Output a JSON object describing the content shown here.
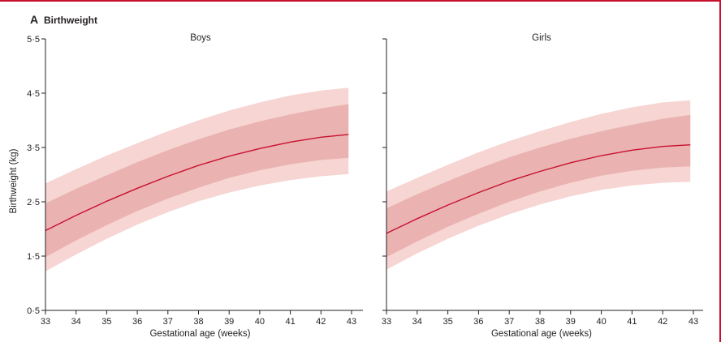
{
  "figure": {
    "panel_letter": "A",
    "panel_title": "Birthweight"
  },
  "colors": {
    "outer_band": "#f6d5d3",
    "inner_band": "#eab3b1",
    "median": "#c8102e",
    "axis": "#231f20",
    "frame": "#c8102e"
  },
  "chart_data": [
    {
      "type": "area",
      "title": "Boys",
      "xlabel": "Gestational age (weeks)",
      "ylabel": "Birthweight (kg)",
      "xlim": [
        33,
        43
      ],
      "ylim": [
        0.5,
        5.5
      ],
      "x_ticks": [
        "33",
        "34",
        "35",
        "36",
        "37",
        "38",
        "39",
        "40",
        "41",
        "42",
        "43"
      ],
      "y_ticks": [
        "0·5",
        "1·5",
        "2·5",
        "3·5",
        "4·5",
        "5·5"
      ],
      "y_tick_values": [
        0.5,
        1.5,
        2.5,
        3.5,
        4.5,
        5.5
      ],
      "grid": false,
      "x": [
        33,
        34,
        35,
        36,
        37,
        38,
        39,
        40,
        41,
        42,
        42.9
      ],
      "series": [
        {
          "values": [
            1.22,
            1.53,
            1.82,
            2.08,
            2.31,
            2.51,
            2.67,
            2.8,
            2.9,
            2.97,
            3.01
          ]
        },
        {
          "values": [
            1.48,
            1.79,
            2.07,
            2.33,
            2.56,
            2.76,
            2.94,
            3.08,
            3.19,
            3.27,
            3.31
          ]
        },
        {
          "values": [
            1.97,
            2.25,
            2.51,
            2.75,
            2.97,
            3.17,
            3.34,
            3.48,
            3.6,
            3.69,
            3.74
          ]
        },
        {
          "values": [
            2.47,
            2.74,
            2.99,
            3.23,
            3.45,
            3.65,
            3.83,
            3.98,
            4.11,
            4.22,
            4.3
          ]
        },
        {
          "values": [
            2.84,
            3.1,
            3.35,
            3.58,
            3.8,
            4.0,
            4.18,
            4.33,
            4.46,
            4.55,
            4.6
          ]
        }
      ]
    },
    {
      "type": "area",
      "title": "Girls",
      "xlabel": "Gestational age (weeks)",
      "ylabel": "",
      "xlim": [
        33,
        43
      ],
      "ylim": [
        0.5,
        5.5
      ],
      "x_ticks": [
        "33",
        "34",
        "35",
        "36",
        "37",
        "38",
        "39",
        "40",
        "41",
        "42",
        "43"
      ],
      "y_ticks": [],
      "y_tick_values": [
        0.5,
        1.5,
        2.5,
        3.5,
        4.5,
        5.5
      ],
      "grid": false,
      "x": [
        33,
        34,
        35,
        36,
        37,
        38,
        39,
        40,
        41,
        42,
        42.9
      ],
      "series": [
        {
          "values": [
            1.25,
            1.55,
            1.82,
            2.06,
            2.27,
            2.45,
            2.6,
            2.72,
            2.8,
            2.85,
            2.87
          ]
        },
        {
          "values": [
            1.48,
            1.77,
            2.04,
            2.28,
            2.5,
            2.69,
            2.85,
            2.98,
            3.07,
            3.13,
            3.15
          ]
        },
        {
          "values": [
            1.92,
            2.19,
            2.44,
            2.67,
            2.88,
            3.06,
            3.22,
            3.35,
            3.45,
            3.52,
            3.55
          ]
        },
        {
          "values": [
            2.38,
            2.64,
            2.88,
            3.11,
            3.32,
            3.5,
            3.66,
            3.8,
            3.92,
            4.03,
            4.1
          ]
        },
        {
          "values": [
            2.69,
            2.94,
            3.18,
            3.41,
            3.62,
            3.8,
            3.97,
            4.12,
            4.24,
            4.33,
            4.37
          ]
        }
      ]
    }
  ]
}
